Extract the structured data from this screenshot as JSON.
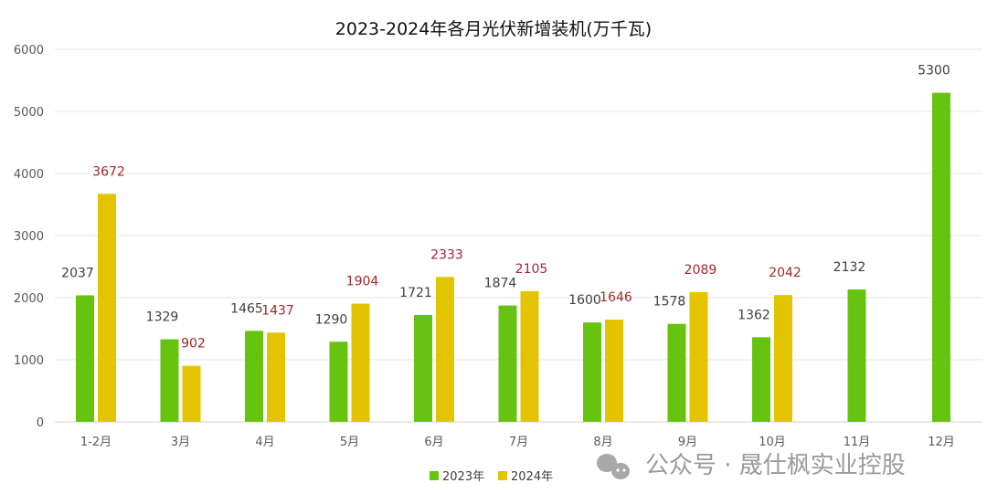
{
  "chart_data": {
    "type": "bar",
    "title": "2023-2024年各月光伏新增装机(万千瓦)",
    "xlabel": "",
    "ylabel": "",
    "ylim": [
      0,
      6000
    ],
    "yticks": [
      0,
      1000,
      2000,
      3000,
      4000,
      5000,
      6000
    ],
    "grid": true,
    "legend_position": "bottom",
    "categories": [
      "1-2月",
      "3月",
      "4月",
      "5月",
      "6月",
      "7月",
      "8月",
      "9月",
      "10月",
      "11月",
      "12月"
    ],
    "series": [
      {
        "name": "2023年",
        "color": "#66c30f",
        "label_color": "#404040",
        "values": [
          2037,
          1329,
          1465,
          1290,
          1721,
          1874,
          1600,
          1578,
          1362,
          2132,
          5300
        ]
      },
      {
        "name": "2024年",
        "color": "#e3c400",
        "label_color": "#a5262b",
        "values": [
          3672,
          902,
          1437,
          1904,
          2333,
          2105,
          1646,
          2089,
          2042,
          null,
          null
        ]
      }
    ]
  },
  "watermark": {
    "text": "公众号 · 晟仕枫实业控股",
    "icon": "wechat-icon"
  }
}
